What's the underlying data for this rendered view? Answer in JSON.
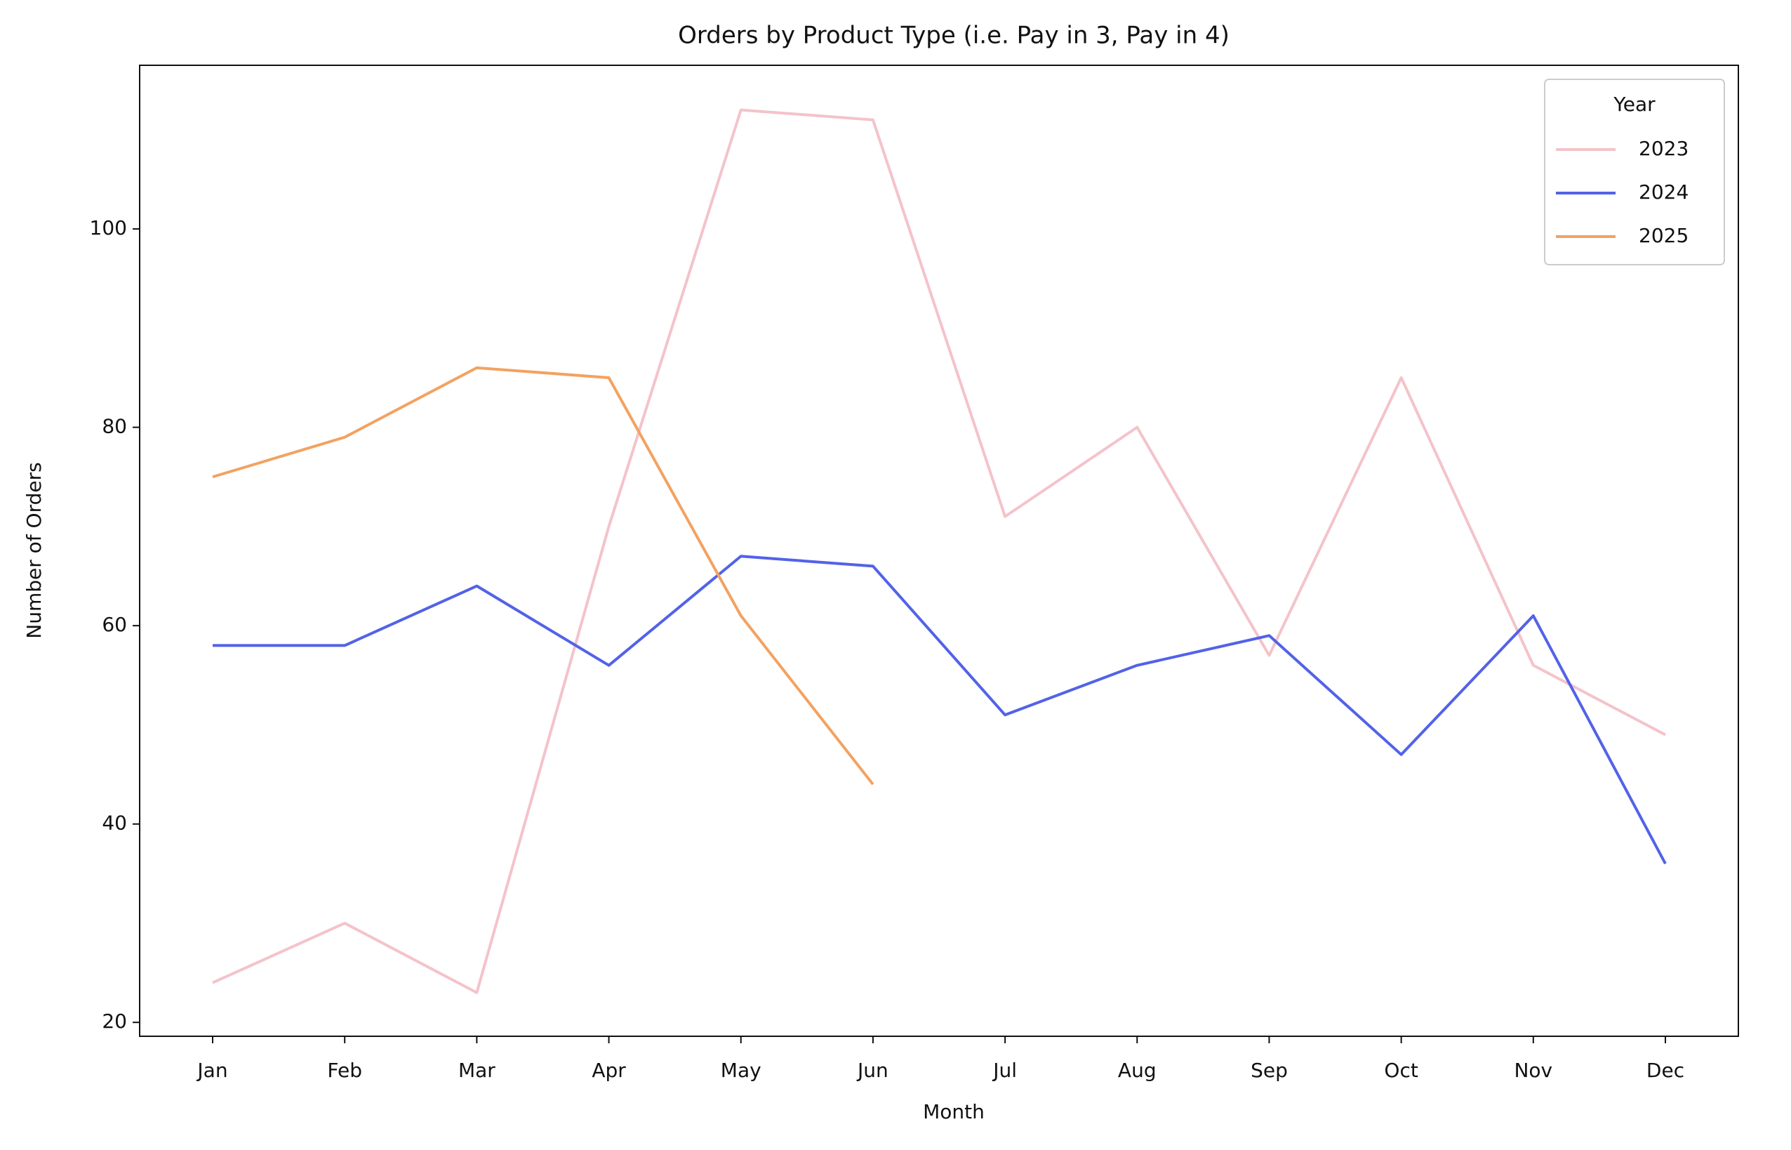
{
  "chart_data": {
    "type": "line",
    "title": "Orders by Product Type (i.e. Pay in 3, Pay in 4)",
    "xlabel": "Month",
    "ylabel": "Number of Orders",
    "categories": [
      "Jan",
      "Feb",
      "Mar",
      "Apr",
      "May",
      "Jun",
      "Jul",
      "Aug",
      "Sep",
      "Oct",
      "Nov",
      "Dec"
    ],
    "series": [
      {
        "name": "2023",
        "color": "#f4c3ca",
        "values": [
          24,
          30,
          23,
          70,
          112,
          111,
          71,
          80,
          57,
          85,
          56,
          49
        ]
      },
      {
        "name": "2024",
        "color": "#5262e8",
        "values": [
          58,
          58,
          64,
          56,
          67,
          66,
          51,
          56,
          59,
          47,
          61,
          36
        ]
      },
      {
        "name": "2025",
        "color": "#f3a261",
        "values": [
          75,
          79,
          86,
          85,
          61,
          44,
          null,
          null,
          null,
          null,
          null,
          null
        ]
      }
    ],
    "ylim": [
      18.6,
      116.5
    ],
    "yticks": [
      20,
      40,
      60,
      80,
      100
    ],
    "legend": {
      "title": "Year",
      "corner": "upper right"
    },
    "grid": false
  }
}
